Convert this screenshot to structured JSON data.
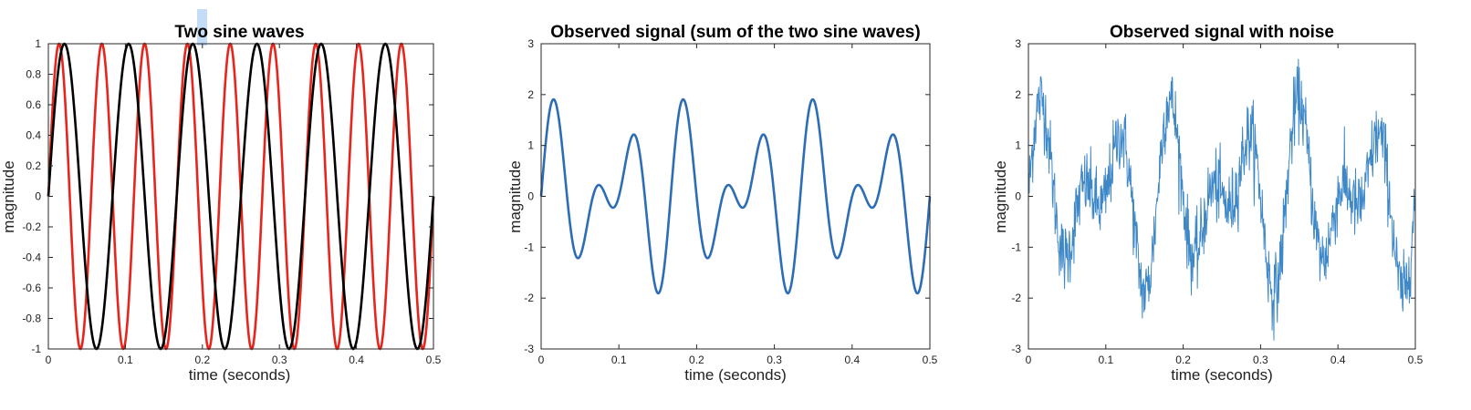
{
  "colors": {
    "wave_fast": "#e8251c",
    "wave_slow": "#000000",
    "observed": "#2c6db5",
    "noisy": "#3f88c8",
    "axis": "#262626"
  },
  "chart_data": [
    {
      "type": "line",
      "title": "Two sine waves",
      "xlabel": "time (seconds)",
      "ylabel": "magnitude",
      "xlim": [
        0,
        0.5
      ],
      "ylim": [
        -1,
        1
      ],
      "xticks": [
        "0",
        "0.1",
        "0.2",
        "0.3",
        "0.4",
        "0.5"
      ],
      "xtick_values": [
        0,
        0.1,
        0.2,
        0.3,
        0.4,
        0.5
      ],
      "yticks": [
        "-1",
        "-0.8",
        "-0.6",
        "-0.4",
        "-0.2",
        "0",
        "0.2",
        "0.4",
        "0.6",
        "0.8",
        "1"
      ],
      "ytick_values": [
        -1,
        -0.8,
        -0.6,
        -0.4,
        -0.2,
        0,
        0.2,
        0.4,
        0.6,
        0.8,
        1
      ],
      "grid": false,
      "series": [
        {
          "function": "sin(2*pi*18*t)",
          "frequency_hz": 18,
          "amplitude": 1,
          "color": "#e8251c"
        },
        {
          "function": "sin(2*pi*12*t)",
          "frequency_hz": 12,
          "amplitude": 1,
          "color": "#000000"
        }
      ]
    },
    {
      "type": "line",
      "title": "Observed signal (sum of the two sine waves)",
      "xlabel": "time (seconds)",
      "ylabel": "magnitude",
      "xlim": [
        0,
        0.5
      ],
      "ylim": [
        -3,
        3
      ],
      "xticks": [
        "0",
        "0.1",
        "0.2",
        "0.3",
        "0.4",
        "0.5"
      ],
      "xtick_values": [
        0,
        0.1,
        0.2,
        0.3,
        0.4,
        0.5
      ],
      "yticks": [
        "-3",
        "-2",
        "-1",
        "0",
        "1",
        "2",
        "3"
      ],
      "ytick_values": [
        -3,
        -2,
        -1,
        0,
        1,
        2,
        3
      ],
      "grid": false,
      "series": [
        {
          "function": "sin(2*pi*18*t) + sin(2*pi*12*t)",
          "color": "#2c6db5"
        }
      ]
    },
    {
      "type": "line",
      "title": "Observed signal with noise",
      "xlabel": "time (seconds)",
      "ylabel": "magnitude",
      "xlim": [
        0,
        0.5
      ],
      "ylim": [
        -3,
        3
      ],
      "xticks": [
        "0",
        "0.1",
        "0.2",
        "0.3",
        "0.4",
        "0.5"
      ],
      "xtick_values": [
        0,
        0.1,
        0.2,
        0.3,
        0.4,
        0.5
      ],
      "yticks": [
        "-3",
        "-2",
        "-1",
        "0",
        "1",
        "2",
        "3"
      ],
      "ytick_values": [
        -3,
        -2,
        -1,
        0,
        1,
        2,
        3
      ],
      "grid": false,
      "series": [
        {
          "function": "sin(2*pi*18*t) + sin(2*pi*12*t) + noise",
          "noise_std": 0.35,
          "color": "#3f88c8"
        }
      ]
    }
  ]
}
